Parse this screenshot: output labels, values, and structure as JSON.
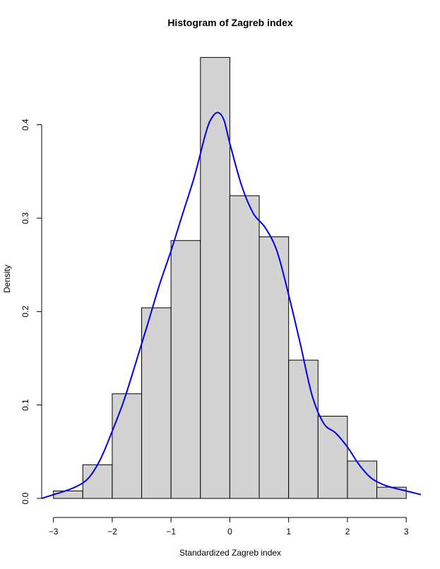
{
  "chart_data": {
    "type": "bar",
    "title": "Histogram of Zagreb index",
    "xlabel": "Standardized Zagreb index",
    "ylabel": "Density",
    "xlim": [
      -3.2,
      3.25
    ],
    "ylim": [
      0,
      0.47
    ],
    "x_ticks": [
      -3,
      -2,
      -1,
      0,
      1,
      2,
      3
    ],
    "x_tick_labels": [
      "−3",
      "−2",
      "−1",
      "0",
      "1",
      "2",
      "3"
    ],
    "y_ticks": [
      0.0,
      0.1,
      0.2,
      0.3,
      0.4
    ],
    "y_tick_labels": [
      "0.0",
      "0.1",
      "0.2",
      "0.3",
      "0.4"
    ],
    "bins": [
      {
        "from": -3.0,
        "to": -2.5,
        "density": 0.008
      },
      {
        "from": -2.5,
        "to": -2.0,
        "density": 0.036
      },
      {
        "from": -2.0,
        "to": -1.5,
        "density": 0.112
      },
      {
        "from": -1.5,
        "to": -1.0,
        "density": 0.204
      },
      {
        "from": -1.0,
        "to": -0.5,
        "density": 0.276
      },
      {
        "from": -0.5,
        "to": 0.0,
        "density": 0.472
      },
      {
        "from": 0.0,
        "to": 0.5,
        "density": 0.324
      },
      {
        "from": 0.5,
        "to": 1.0,
        "density": 0.28
      },
      {
        "from": 1.0,
        "to": 1.5,
        "density": 0.148
      },
      {
        "from": 1.5,
        "to": 2.0,
        "density": 0.088
      },
      {
        "from": 2.0,
        "to": 2.5,
        "density": 0.04
      },
      {
        "from": 2.5,
        "to": 3.0,
        "density": 0.012
      }
    ],
    "density_curve": {
      "color": "#0000ee",
      "x": [
        -3.2,
        -3.0,
        -2.8,
        -2.6,
        -2.4,
        -2.2,
        -2.0,
        -1.8,
        -1.6,
        -1.4,
        -1.2,
        -1.0,
        -0.8,
        -0.6,
        -0.4,
        -0.3,
        -0.2,
        -0.1,
        0.0,
        0.2,
        0.4,
        0.6,
        0.8,
        1.0,
        1.2,
        1.4,
        1.6,
        1.8,
        2.0,
        2.2,
        2.4,
        2.6,
        2.8,
        3.0,
        3.25
      ],
      "y": [
        0.0,
        0.004,
        0.008,
        0.013,
        0.022,
        0.042,
        0.072,
        0.105,
        0.145,
        0.186,
        0.228,
        0.265,
        0.305,
        0.345,
        0.393,
        0.408,
        0.413,
        0.405,
        0.38,
        0.335,
        0.305,
        0.29,
        0.265,
        0.218,
        0.165,
        0.11,
        0.08,
        0.07,
        0.055,
        0.036,
        0.022,
        0.015,
        0.011,
        0.008,
        0.004
      ]
    },
    "bar_fill": "#d3d3d3",
    "bar_stroke": "#000000",
    "grid": false,
    "legend": "none"
  }
}
